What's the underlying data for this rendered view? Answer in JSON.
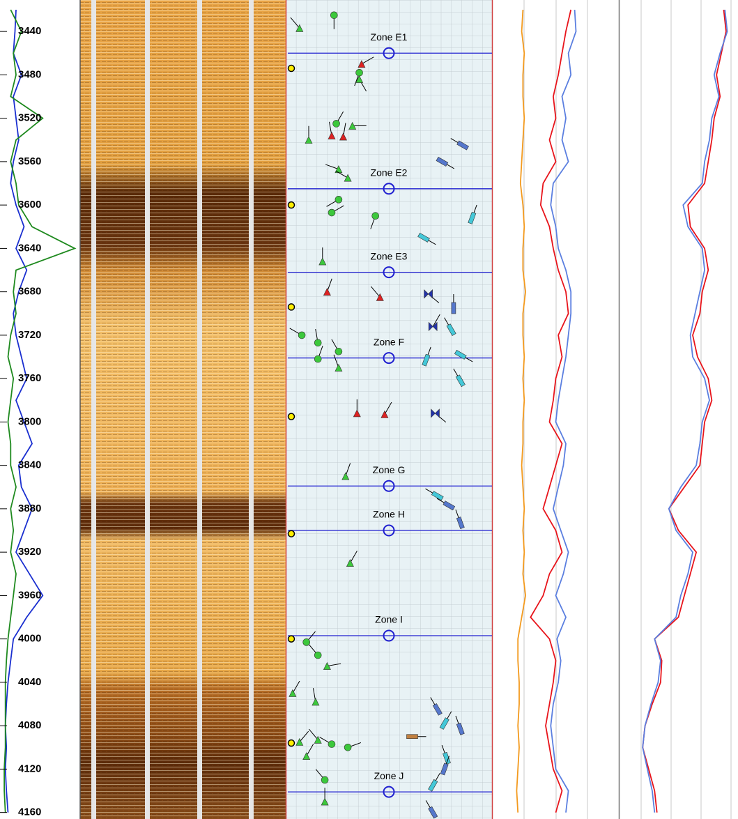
{
  "chart_data": {
    "type": "well-log",
    "ylim": [
      3411,
      4166
    ],
    "yticks": [
      3440,
      3480,
      3520,
      3560,
      3600,
      3640,
      3680,
      3720,
      3760,
      3800,
      3840,
      3880,
      3920,
      3960,
      4000,
      4040,
      4080,
      4120,
      4160
    ],
    "depths": [
      3420,
      3440,
      3460,
      3480,
      3500,
      3520,
      3540,
      3560,
      3580,
      3600,
      3620,
      3640,
      3660,
      3680,
      3700,
      3720,
      3740,
      3760,
      3780,
      3800,
      3820,
      3840,
      3860,
      3880,
      3900,
      3920,
      3940,
      3960,
      3980,
      4000,
      4020,
      4040,
      4060,
      4080,
      4100,
      4120,
      4140,
      4160
    ],
    "tracks": [
      {
        "xlim": [
          0,
          150
        ],
        "series": [
          {
            "color": "#1a2fd0",
            "values": [
              30,
              28,
              25,
              40,
              25,
              30,
              35,
              25,
              20,
              30,
              45,
              30,
              50,
              35,
              25,
              30,
              40,
              50,
              30,
              45,
              60,
              35,
              40,
              60,
              45,
              30,
              55,
              80,
              50,
              25,
              20,
              15,
              12,
              10,
              12,
              10,
              12,
              15
            ]
          },
          {
            "color": "#1f8a1f",
            "values": [
              20,
              40,
              25,
              30,
              20,
              80,
              30,
              20,
              30,
              35,
              60,
              140,
              30,
              25,
              30,
              20,
              15,
              25,
              20,
              15,
              20,
              20,
              30,
              20,
              25,
              20,
              30,
              25,
              20,
              15,
              12,
              10,
              10,
              10,
              10,
              8,
              8,
              10
            ]
          }
        ]
      },
      {
        "xlim": [
          0,
          100
        ],
        "series": [
          {
            "color": "#f39a1e",
            "values": [
              24,
              23,
              25,
              24,
              24,
              25,
              24,
              23,
              22,
              24,
              25,
              24,
              24,
              26,
              24,
              24,
              25,
              24,
              25,
              24,
              24,
              23,
              24,
              25,
              24,
              25,
              24,
              26,
              23,
              20,
              20,
              21,
              21,
              20,
              21,
              20,
              19,
              20
            ]
          },
          {
            "color": "#e8141b",
            "values": [
              62,
              58,
              55,
              52,
              48,
              50,
              45,
              50,
              40,
              38,
              45,
              48,
              52,
              58,
              60,
              52,
              55,
              50,
              48,
              45,
              55,
              50,
              45,
              40,
              50,
              55,
              45,
              40,
              30,
              45,
              50,
              48,
              45,
              42,
              45,
              48,
              55,
              50
            ]
          },
          {
            "color": "#5b7fe0",
            "values": [
              65,
              66,
              60,
              62,
              55,
              58,
              55,
              60,
              48,
              46,
              50,
              52,
              58,
              62,
              62,
              60,
              58,
              55,
              52,
              50,
              58,
              56,
              52,
              48,
              54,
              60,
              56,
              50,
              58,
              51,
              54,
              52,
              48,
              46,
              48,
              50,
              60,
              58
            ]
          }
        ]
      },
      {
        "xlim": [
          0,
          100
        ],
        "series": [
          {
            "color": "#e8141b",
            "values": [
              88,
              90,
              86,
              82,
              85,
              80,
              78,
              75,
              72,
              58,
              60,
              72,
              75,
              70,
              68,
              62,
              66,
              75,
              78,
              72,
              70,
              68,
              55,
              42,
              50,
              65,
              60,
              55,
              50,
              30,
              36,
              35,
              28,
              22,
              20,
              25,
              30,
              32
            ]
          },
          {
            "color": "#5b7fe0",
            "values": [
              89,
              91,
              85,
              80,
              84,
              78,
              76,
              72,
              70,
              54,
              58,
              70,
              72,
              68,
              64,
              60,
              62,
              72,
              76,
              70,
              68,
              65,
              52,
              42,
              48,
              62,
              58,
              52,
              48,
              30,
              35,
              33,
              27,
              22,
              20,
              24,
              28,
              30
            ]
          }
        ]
      }
    ],
    "zones": [
      {
        "name": "Zone E1",
        "depth": 3460
      },
      {
        "name": "Zone E2",
        "depth": 3585
      },
      {
        "name": "Zone E3",
        "depth": 3662
      },
      {
        "name": "Zone F",
        "depth": 3741
      },
      {
        "name": "Zone G",
        "depth": 3859
      },
      {
        "name": "Zone H",
        "depth": 3900
      },
      {
        "name": "Zone I",
        "depth": 3997
      },
      {
        "name": "Zone J",
        "depth": 4141
      }
    ],
    "dip_xlim": [
      0,
      90
    ],
    "dips": [
      {
        "depth": 3425,
        "dip": 21,
        "azimuth": 180,
        "shape": "circle",
        "color": "#3cc83c"
      },
      {
        "depth": 3437,
        "dip": 6,
        "azimuth": 320,
        "shape": "triangle",
        "color": "#3cc83c"
      },
      {
        "depth": 3470,
        "dip": 33,
        "azimuth": 60,
        "shape": "triangle",
        "color": "#dd2222"
      },
      {
        "depth": 3478,
        "dip": 32,
        "azimuth": 200,
        "shape": "circle",
        "color": "#3cc83c"
      },
      {
        "depth": 3484,
        "dip": 32,
        "azimuth": 150,
        "shape": "triangle",
        "color": "#3cc83c"
      },
      {
        "depth": 3525,
        "dip": 22,
        "azimuth": 30,
        "shape": "circle",
        "color": "#3cc83c"
      },
      {
        "depth": 3527,
        "dip": 29,
        "azimuth": 90,
        "shape": "triangle",
        "color": "#3cc83c"
      },
      {
        "depth": 3536,
        "dip": 20,
        "azimuth": 350,
        "shape": "triangle",
        "color": "#dd2222"
      },
      {
        "depth": 3537,
        "dip": 25,
        "azimuth": 10,
        "shape": "triangle",
        "color": "#dd2222"
      },
      {
        "depth": 3540,
        "dip": 10,
        "azimuth": 0,
        "shape": "triangle",
        "color": "#3cc83c"
      },
      {
        "depth": 3545,
        "dip": 77,
        "azimuth": 300,
        "shape": "rect",
        "color": "#5577cc"
      },
      {
        "depth": 3560,
        "dip": 68,
        "azimuth": 120,
        "shape": "rect",
        "color": "#5577cc"
      },
      {
        "depth": 3567,
        "dip": 23,
        "azimuth": 290,
        "shape": "triangle",
        "color": "#3cc83c"
      },
      {
        "depth": 3575,
        "dip": 27,
        "azimuth": 300,
        "shape": "triangle",
        "color": "#3cc83c"
      },
      {
        "depth": 3595,
        "dip": 23,
        "azimuth": 240,
        "shape": "circle",
        "color": "#3cc83c"
      },
      {
        "depth": 3607,
        "dip": 20,
        "azimuth": 60,
        "shape": "circle",
        "color": "#3cc83c"
      },
      {
        "depth": 3610,
        "dip": 39,
        "azimuth": 200,
        "shape": "circle",
        "color": "#3cc83c"
      },
      {
        "depth": 3612,
        "dip": 81,
        "azimuth": 20,
        "shape": "rect",
        "color": "#44c8d8"
      },
      {
        "depth": 3630,
        "dip": 60,
        "azimuth": 120,
        "shape": "rect",
        "color": "#44c8d8"
      },
      {
        "depth": 3652,
        "dip": 16,
        "azimuth": 0,
        "shape": "triangle",
        "color": "#3cc83c"
      },
      {
        "depth": 3680,
        "dip": 18,
        "azimuth": 20,
        "shape": "triangle",
        "color": "#dd2222"
      },
      {
        "depth": 3685,
        "dip": 41,
        "azimuth": 320,
        "shape": "triangle",
        "color": "#dd2222"
      },
      {
        "depth": 3682,
        "dip": 62,
        "azimuth": 130,
        "shape": "bowtie",
        "color": "#2233aa"
      },
      {
        "depth": 3695,
        "dip": 73,
        "azimuth": 0,
        "shape": "rect",
        "color": "#5577cc"
      },
      {
        "depth": 3712,
        "dip": 64,
        "azimuth": 30,
        "shape": "bowtie",
        "color": "#2233aa"
      },
      {
        "depth": 3715,
        "dip": 72,
        "azimuth": 330,
        "shape": "rect",
        "color": "#44c8d8"
      },
      {
        "depth": 3720,
        "dip": 7,
        "azimuth": 300,
        "shape": "circle",
        "color": "#3cc83c"
      },
      {
        "depth": 3727,
        "dip": 14,
        "azimuth": 350,
        "shape": "circle",
        "color": "#3cc83c"
      },
      {
        "depth": 3735,
        "dip": 23,
        "azimuth": 330,
        "shape": "circle",
        "color": "#3cc83c"
      },
      {
        "depth": 3742,
        "dip": 14,
        "azimuth": 20,
        "shape": "circle",
        "color": "#3cc83c"
      },
      {
        "depth": 3750,
        "dip": 23,
        "azimuth": 340,
        "shape": "triangle",
        "color": "#3cc83c"
      },
      {
        "depth": 3738,
        "dip": 76,
        "azimuth": 120,
        "shape": "rect",
        "color": "#44c8d8"
      },
      {
        "depth": 3743,
        "dip": 61,
        "azimuth": 20,
        "shape": "rect",
        "color": "#44c8d8"
      },
      {
        "depth": 3762,
        "dip": 76,
        "azimuth": 330,
        "shape": "rect",
        "color": "#44c8d8"
      },
      {
        "depth": 3792,
        "dip": 31,
        "azimuth": 0,
        "shape": "triangle",
        "color": "#dd2222"
      },
      {
        "depth": 3793,
        "dip": 43,
        "azimuth": 30,
        "shape": "triangle",
        "color": "#dd2222"
      },
      {
        "depth": 3792,
        "dip": 65,
        "azimuth": 130,
        "shape": "bowtie",
        "color": "#2233aa"
      },
      {
        "depth": 3850,
        "dip": 26,
        "azimuth": 20,
        "shape": "triangle",
        "color": "#3cc83c"
      },
      {
        "depth": 3868,
        "dip": 66,
        "azimuth": 300,
        "shape": "rect",
        "color": "#44c8d8"
      },
      {
        "depth": 3877,
        "dip": 71,
        "azimuth": 300,
        "shape": "rect",
        "color": "#5577cc"
      },
      {
        "depth": 3893,
        "dip": 76,
        "azimuth": 340,
        "shape": "rect",
        "color": "#5577cc"
      },
      {
        "depth": 3930,
        "dip": 28,
        "azimuth": 30,
        "shape": "triangle",
        "color": "#3cc83c"
      },
      {
        "depth": 4003,
        "dip": 9,
        "azimuth": 40,
        "shape": "circle",
        "color": "#3cc83c"
      },
      {
        "depth": 4015,
        "dip": 14,
        "azimuth": 320,
        "shape": "circle",
        "color": "#3cc83c"
      },
      {
        "depth": 4025,
        "dip": 18,
        "azimuth": 80,
        "shape": "triangle",
        "color": "#3cc83c"
      },
      {
        "depth": 4050,
        "dip": 3,
        "azimuth": 30,
        "shape": "triangle",
        "color": "#3cc83c"
      },
      {
        "depth": 4058,
        "dip": 13,
        "azimuth": 350,
        "shape": "triangle",
        "color": "#3cc83c"
      },
      {
        "depth": 4065,
        "dip": 66,
        "azimuth": 330,
        "shape": "rect",
        "color": "#5577cc"
      },
      {
        "depth": 4078,
        "dip": 69,
        "azimuth": 30,
        "shape": "rect",
        "color": "#44c8d8"
      },
      {
        "depth": 4083,
        "dip": 76,
        "azimuth": 340,
        "shape": "rect",
        "color": "#5577cc"
      },
      {
        "depth": 4090,
        "dip": 55,
        "azimuth": 90,
        "shape": "rect",
        "color": "#c08040"
      },
      {
        "depth": 4095,
        "dip": 6,
        "azimuth": 40,
        "shape": "triangle",
        "color": "#3cc83c"
      },
      {
        "depth": 4093,
        "dip": 14,
        "azimuth": 320,
        "shape": "triangle",
        "color": "#3cc83c"
      },
      {
        "depth": 4097,
        "dip": 20,
        "azimuth": 300,
        "shape": "circle",
        "color": "#3cc83c"
      },
      {
        "depth": 4100,
        "dip": 27,
        "azimuth": 70,
        "shape": "circle",
        "color": "#3cc83c"
      },
      {
        "depth": 4108,
        "dip": 9,
        "azimuth": 30,
        "shape": "triangle",
        "color": "#3cc83c"
      },
      {
        "depth": 4110,
        "dip": 70,
        "azimuth": 340,
        "shape": "rect",
        "color": "#44c8d8"
      },
      {
        "depth": 4120,
        "dip": 69,
        "azimuth": 20,
        "shape": "rect",
        "color": "#5577cc"
      },
      {
        "depth": 4130,
        "dip": 17,
        "azimuth": 320,
        "shape": "circle",
        "color": "#3cc83c"
      },
      {
        "depth": 4135,
        "dip": 64,
        "azimuth": 30,
        "shape": "rect",
        "color": "#44c8d8"
      },
      {
        "depth": 4150,
        "dip": 17,
        "azimuth": 0,
        "shape": "triangle",
        "color": "#3cc83c"
      },
      {
        "depth": 4160,
        "dip": 64,
        "azimuth": 330,
        "shape": "rect",
        "color": "#5577cc"
      }
    ],
    "marker_color": "#ffee00",
    "markers": [
      3474,
      3600,
      3694,
      3795,
      3903,
      4000,
      4096
    ]
  }
}
